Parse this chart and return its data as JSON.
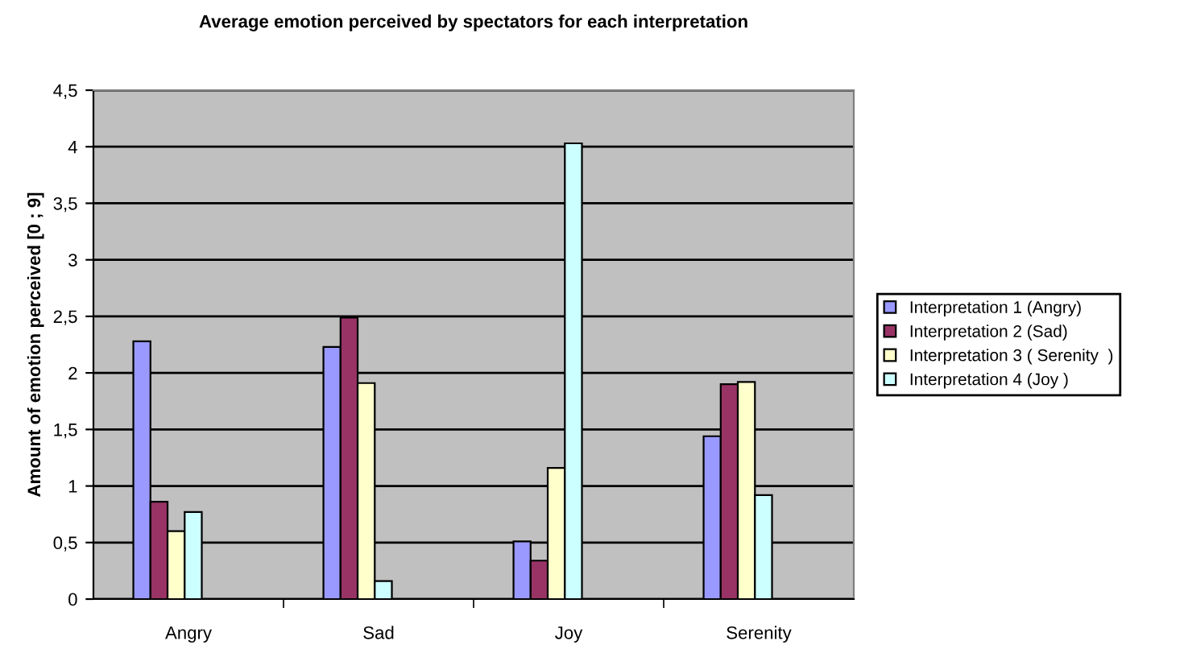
{
  "chart_data": {
    "type": "bar",
    "title": "Average emotion perceived by spectators for each interpretation",
    "ylabel": "Amount of emotion perceived [0 ; 9]",
    "categories": [
      "Angry",
      "Sad",
      "Joy",
      "Serenity"
    ],
    "series": [
      {
        "name": "Interpretation 1 (Angry)",
        "color": "#9999ff",
        "values": [
          2.28,
          2.23,
          0.51,
          1.44
        ]
      },
      {
        "name": "Interpretation 2 (Sad)",
        "color": "#993366",
        "values": [
          0.86,
          2.49,
          0.34,
          1.9
        ]
      },
      {
        "name": "Interpretation 3 ( Serenity  )",
        "color": "#ffffcc",
        "values": [
          0.6,
          1.91,
          1.16,
          1.92
        ]
      },
      {
        "name": "Interpretation 4 (Joy )",
        "color": "#ccffff",
        "values": [
          0.77,
          0.16,
          4.03,
          0.92
        ]
      }
    ],
    "ylim": [
      0,
      4.5
    ],
    "yticks": [
      0,
      {
        "value": 0.5,
        "label": "0,5"
      },
      1,
      {
        "value": 1.5,
        "label": "1,5"
      },
      2,
      {
        "value": 2.5,
        "label": "2,5"
      },
      3,
      {
        "value": 3.5,
        "label": "3,5"
      },
      4,
      {
        "value": 4.5,
        "label": "4,5"
      }
    ],
    "grid": "y",
    "legend": "right"
  }
}
